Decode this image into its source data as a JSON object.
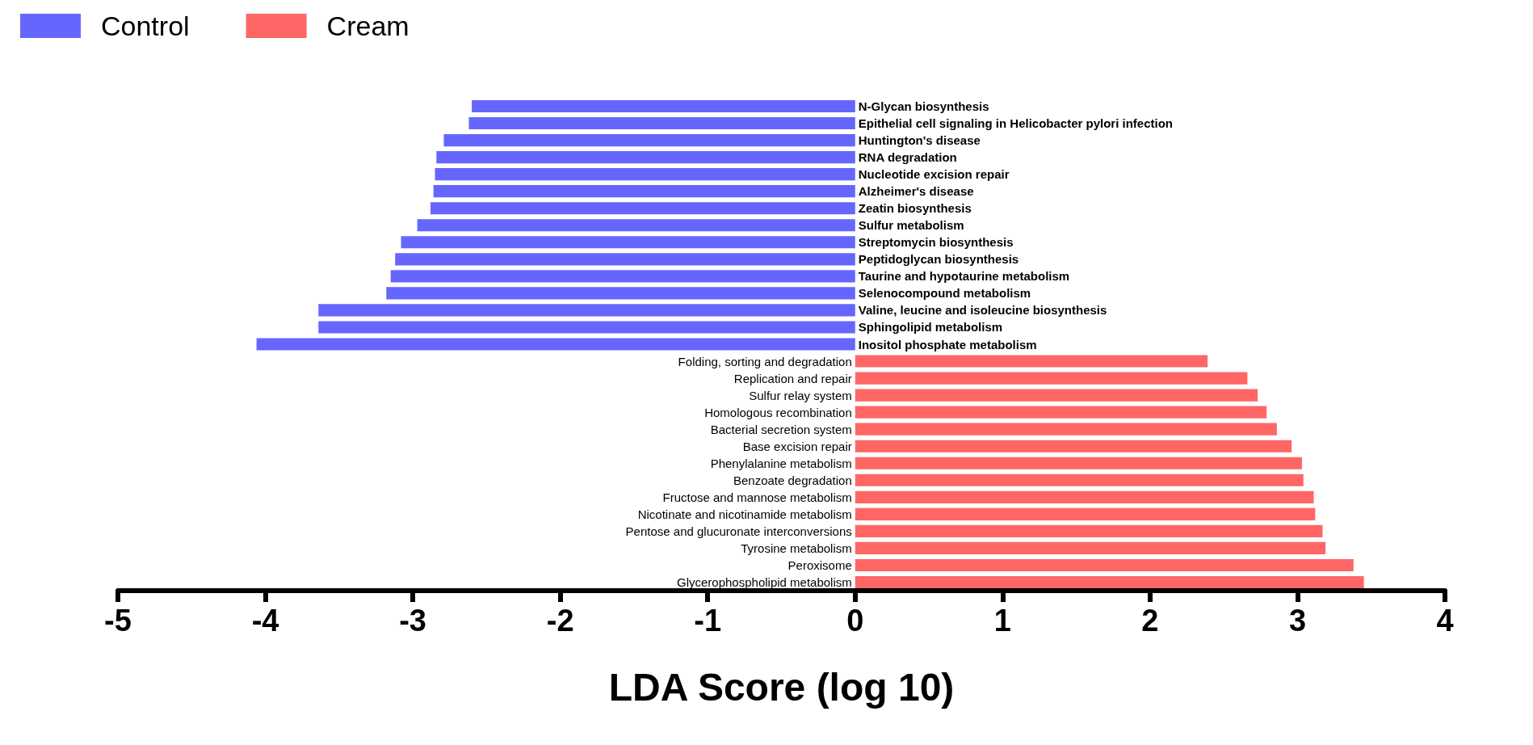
{
  "chart_data": {
    "type": "bar",
    "orientation": "horizontal",
    "xlabel": "LDA Score (log 10)",
    "categories": [
      "N-Glycan biosynthesis",
      "Epithelial cell signaling in Helicobacter pylori infection",
      "Huntington's disease",
      "RNA degradation",
      "Nucleotide excision repair",
      "Alzheimer's disease",
      "Zeatin biosynthesis",
      "Sulfur metabolism",
      "Streptomycin biosynthesis",
      "Peptidoglycan biosynthesis",
      "Taurine and hypotaurine metabolism",
      "Selenocompound metabolism",
      "Valine, leucine and isoleucine biosynthesis",
      "Sphingolipid metabolism",
      "Inositol phosphate metabolism",
      "Folding, sorting and degradation",
      "Replication and repair",
      "Sulfur relay system",
      "Homologous recombination",
      "Bacterial secretion system",
      "Base excision repair",
      "Phenylalanine metabolism",
      "Benzoate degradation",
      "Fructose and mannose metabolism",
      "Nicotinate and nicotinamide metabolism",
      "Pentose and glucuronate interconversions",
      "Tyrosine metabolism",
      "Peroxisome",
      "Glycerophospholipid metabolism"
    ],
    "series": [
      {
        "name": "Control",
        "color": "#6666ff",
        "values": [
          -2.6,
          -2.62,
          -2.79,
          -2.84,
          -2.85,
          -2.86,
          -2.88,
          -2.97,
          -3.08,
          -3.12,
          -3.15,
          -3.18,
          -3.64,
          -3.64,
          -4.06,
          null,
          null,
          null,
          null,
          null,
          null,
          null,
          null,
          null,
          null,
          null,
          null,
          null,
          null
        ]
      },
      {
        "name": "Cream",
        "color": "#ff6666",
        "values": [
          null,
          null,
          null,
          null,
          null,
          null,
          null,
          null,
          null,
          null,
          null,
          null,
          null,
          null,
          null,
          2.39,
          2.66,
          2.73,
          2.79,
          2.86,
          2.96,
          3.03,
          3.04,
          3.11,
          3.12,
          3.17,
          3.19,
          3.38,
          3.45
        ]
      }
    ],
    "xlim": [
      -5,
      4
    ],
    "xticks": [
      -5,
      -4,
      -3,
      -2,
      -1,
      0,
      1,
      2,
      3,
      4
    ],
    "grid": false,
    "legend": "top left"
  }
}
